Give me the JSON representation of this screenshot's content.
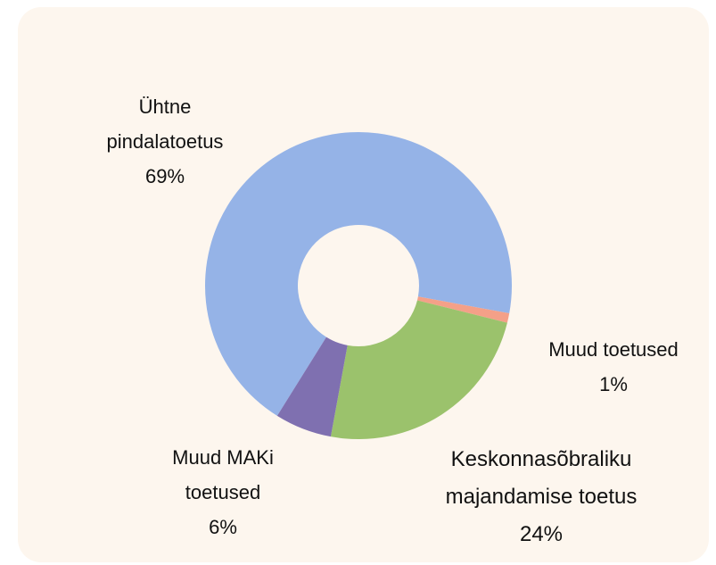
{
  "chart_data": {
    "type": "donut",
    "categories": [
      "Ühtne pindalatoetus",
      "Muud toetused",
      "Keskonnasõbraliku majandamise toetus",
      "Muud MAKi toetused"
    ],
    "values": [
      69,
      1,
      24,
      6
    ],
    "value_labels": [
      "69%",
      "1%",
      "24%",
      "6%"
    ],
    "colors": [
      "#95b3e7",
      "#f4a088",
      "#9bc26c",
      "#7f70b0"
    ]
  }
}
